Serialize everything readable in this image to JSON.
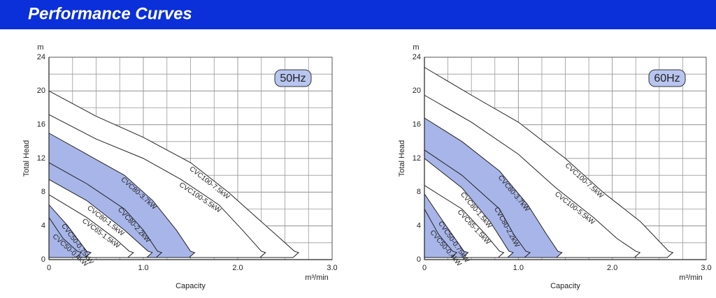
{
  "header": {
    "title": "Performance Curves"
  },
  "chart_data": [
    {
      "type": "area",
      "annotation": "50Hz",
      "xlabel": "Capacity",
      "ylabel": "Total Head",
      "x_unit": "m³/min",
      "y_unit": "m",
      "xlim": [
        0,
        3
      ],
      "ylim": [
        0,
        24
      ],
      "xticks": [
        0,
        {
          "value": 1,
          "label": "1.0"
        },
        {
          "value": 2,
          "label": "2.0"
        },
        {
          "value": 3,
          "label": "3.0"
        }
      ],
      "yticks": [
        0,
        4,
        8,
        12,
        16,
        20,
        24
      ],
      "grid": true,
      "series": [
        {
          "name": "CVC100-7.5kW",
          "color": "#ffffff",
          "x": [
            0,
            0.5,
            1.0,
            1.5,
            1.9,
            2.2,
            2.45,
            2.6
          ],
          "values": [
            20,
            17,
            14.5,
            11.5,
            8,
            5,
            2.5,
            1
          ]
        },
        {
          "name": "CVC100-5.5kW",
          "color": "#ffffff",
          "x": [
            0,
            0.5,
            1.0,
            1.4,
            1.8,
            2.05,
            2.25
          ],
          "values": [
            17.2,
            14.3,
            12,
            9.5,
            6.5,
            3.5,
            1
          ]
        },
        {
          "name": "CVC80-3.7kW",
          "color": "#a7b5e8",
          "x": [
            0,
            0.4,
            0.8,
            1.1,
            1.35,
            1.5
          ],
          "values": [
            15,
            12.5,
            10,
            7,
            3.5,
            1
          ]
        },
        {
          "name": "CVC80-2.2kW",
          "color": "#a7b5e8",
          "x": [
            0,
            0.4,
            0.8,
            1.0,
            1.15
          ],
          "values": [
            11.5,
            9,
            6,
            3.5,
            1
          ]
        },
        {
          "name": "CVC80-1.5kW",
          "color": "#ffffff",
          "x": [
            0,
            0.4,
            0.8,
            1.05
          ],
          "values": [
            9.5,
            7,
            3.5,
            1
          ]
        },
        {
          "name": "CVC65-1.5kW",
          "color": "#ffffff",
          "x": [
            0,
            0.4,
            0.7,
            0.85
          ],
          "values": [
            7.7,
            5,
            2.5,
            1
          ]
        },
        {
          "name": "CVC50-0.75kW",
          "color": "#a7b5e8",
          "x": [
            0,
            0.2,
            0.4
          ],
          "values": [
            6.5,
            4,
            1
          ]
        },
        {
          "name": "CVC50-0.4kW",
          "color": "#a7b5e8",
          "x": [
            0,
            0.15,
            0.3
          ],
          "values": [
            5,
            2.5,
            1
          ]
        }
      ]
    },
    {
      "type": "area",
      "annotation": "60Hz",
      "xlabel": "Capacity",
      "ylabel": "Total Head",
      "x_unit": "m³/min",
      "y_unit": "m",
      "xlim": [
        0,
        3
      ],
      "ylim": [
        0,
        24
      ],
      "xticks": [
        0,
        {
          "value": 1,
          "label": "1.0"
        },
        {
          "value": 2,
          "label": "2.0"
        },
        {
          "value": 3,
          "label": "3.0"
        }
      ],
      "yticks": [
        0,
        4,
        8,
        12,
        16,
        20,
        24
      ],
      "grid": true,
      "series": [
        {
          "name": "CVC100-7.5kW",
          "color": "#ffffff",
          "x": [
            0,
            0.5,
            1.0,
            1.5,
            1.9,
            2.3,
            2.6
          ],
          "values": [
            22.8,
            19.5,
            16.3,
            12,
            8,
            4.5,
            1
          ]
        },
        {
          "name": "CVC100-5.5kW",
          "color": "#ffffff",
          "x": [
            0,
            0.5,
            1.0,
            1.4,
            1.8,
            2.05,
            2.25
          ],
          "values": [
            19.5,
            16.3,
            12.5,
            8.5,
            5,
            2.5,
            1
          ]
        },
        {
          "name": "CVC80-3.7kW",
          "color": "#a7b5e8",
          "x": [
            0,
            0.4,
            0.8,
            1.1,
            1.3,
            1.42
          ],
          "values": [
            16.8,
            14,
            10.5,
            6.5,
            3,
            1
          ]
        },
        {
          "name": "CVC80-2.2kW",
          "color": "#a7b5e8",
          "x": [
            0,
            0.4,
            0.8,
            0.95,
            1.08
          ],
          "values": [
            13,
            10,
            6,
            3,
            1
          ]
        },
        {
          "name": "CVC80-1.5kW",
          "color": "#ffffff",
          "x": [
            0,
            0.4,
            0.7,
            0.9
          ],
          "values": [
            12,
            8.5,
            4.5,
            1
          ]
        },
        {
          "name": "CVC65-1.5kW",
          "color": "#ffffff",
          "x": [
            0,
            0.4,
            0.65,
            0.8
          ],
          "values": [
            8.8,
            6,
            3,
            1
          ]
        },
        {
          "name": "CVC50-0.75kW",
          "color": "#a7b5e8",
          "x": [
            0,
            0.2,
            0.42
          ],
          "values": [
            7.8,
            4.5,
            1
          ]
        },
        {
          "name": "CVC50-0.4kW",
          "color": "#a7b5e8",
          "x": [
            0,
            0.15,
            0.3
          ],
          "values": [
            6,
            3,
            1
          ]
        }
      ]
    }
  ]
}
